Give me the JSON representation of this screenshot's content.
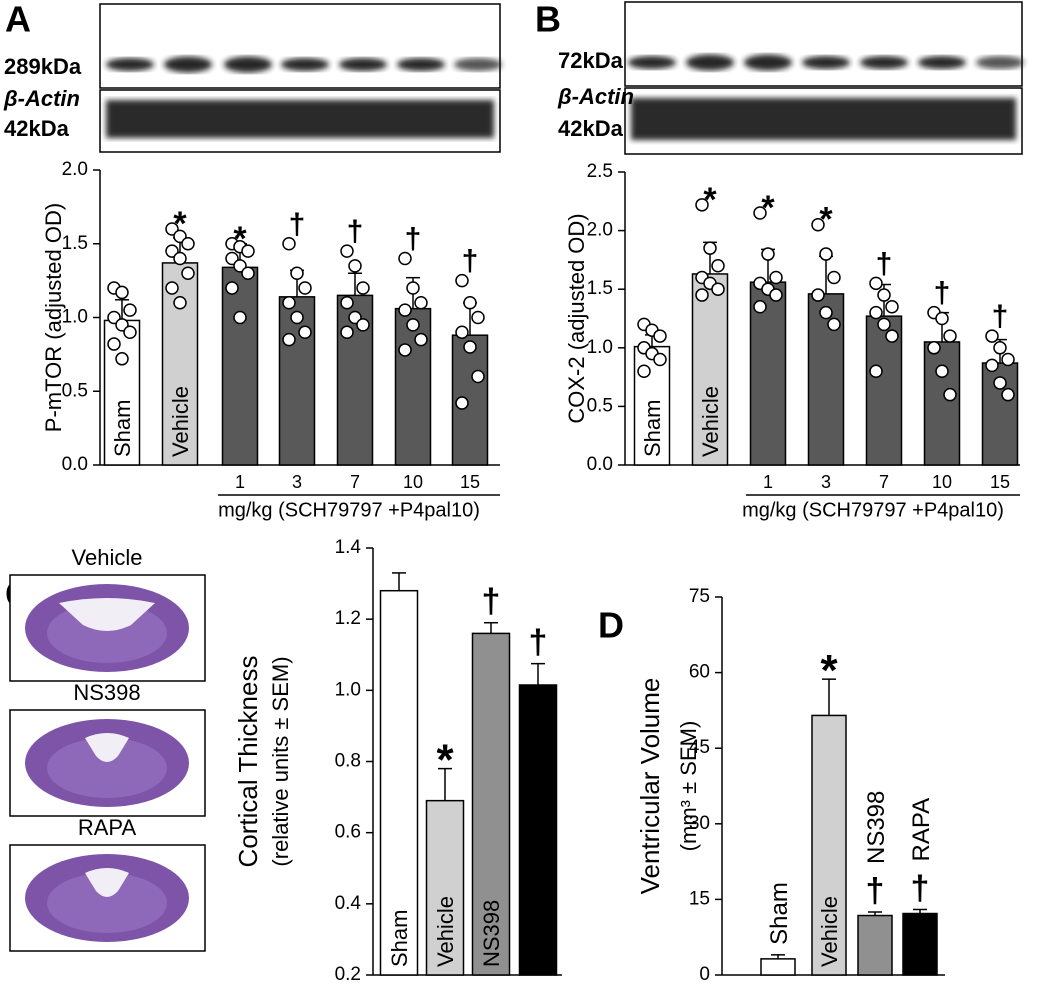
{
  "chart_data": [
    {
      "type": "bar",
      "panel": "A",
      "blot": [
        "289kDa",
        "β-Actin",
        "42kDa"
      ],
      "ylabel": "P-mTOR (adjusted OD)",
      "xlabel": "mg/kg (SCH79797 +P4pal10)",
      "categories": [
        "Sham",
        "Vehicle",
        "1",
        "3",
        "7",
        "10",
        "15"
      ],
      "values": [
        0.98,
        1.37,
        1.34,
        1.14,
        1.15,
        1.06,
        0.88
      ],
      "errors": [
        0.14,
        0.17,
        0.16,
        0.18,
        0.15,
        0.21,
        0.22
      ],
      "points": [
        [
          1.2,
          1.17,
          1.05,
          1.0,
          0.95,
          0.9,
          0.82,
          0.72
        ],
        [
          1.6,
          1.55,
          1.5,
          1.45,
          1.4,
          1.3,
          1.2,
          1.1
        ],
        [
          1.5,
          1.48,
          1.45,
          1.4,
          1.35,
          1.3,
          1.2,
          1.0
        ],
        [
          1.5,
          1.3,
          1.2,
          1.1,
          1.0,
          0.9,
          0.85
        ],
        [
          1.45,
          1.35,
          1.2,
          1.1,
          1.0,
          0.95,
          0.9
        ],
        [
          1.4,
          1.2,
          1.1,
          1.05,
          0.95,
          0.85,
          0.78
        ],
        [
          1.25,
          1.1,
          1.0,
          0.9,
          0.8,
          0.6,
          0.42
        ]
      ],
      "annotations": [
        null,
        "*",
        "*",
        "†",
        "†",
        "†",
        "†"
      ],
      "colors": [
        "#ffffff",
        "#d0d0d0",
        "#595959",
        "#595959",
        "#595959",
        "#595959",
        "#595959"
      ],
      "ylim": [
        0,
        2
      ],
      "yticks": [
        {
          "value": 0,
          "label": "0.0"
        },
        0.5,
        {
          "value": 1,
          "label": "1.0"
        },
        1.5,
        {
          "value": 2,
          "label": "2.0"
        }
      ]
    },
    {
      "type": "bar",
      "panel": "B",
      "blot": [
        "72kDa",
        "β-Actin",
        "42kDa"
      ],
      "ylabel": "COX-2 (adjusted OD)",
      "xlabel": "mg/kg (SCH79797 +P4pal10)",
      "categories": [
        "Sham",
        "Vehicle",
        "1",
        "3",
        "7",
        "10",
        "15"
      ],
      "values": [
        1.01,
        1.63,
        1.56,
        1.46,
        1.27,
        1.05,
        0.87
      ],
      "errors": [
        0.1,
        0.27,
        0.28,
        0.32,
        0.27,
        0.25,
        0.2
      ],
      "points": [
        [
          1.2,
          1.15,
          1.1,
          1.0,
          0.95,
          0.9,
          0.8
        ],
        [
          2.22,
          1.85,
          1.7,
          1.6,
          1.55,
          1.5,
          1.45
        ],
        [
          2.15,
          1.8,
          1.6,
          1.55,
          1.5,
          1.45,
          1.35
        ],
        [
          2.05,
          1.8,
          1.6,
          1.45,
          1.3,
          1.2
        ],
        [
          1.55,
          1.45,
          1.35,
          1.3,
          1.2,
          1.1,
          0.8
        ],
        [
          1.3,
          1.25,
          1.1,
          1.0,
          0.8,
          0.6
        ],
        [
          1.1,
          1.0,
          0.9,
          0.85,
          0.7,
          0.6
        ]
      ],
      "annotations": [
        null,
        "*",
        "*",
        "*",
        "†",
        "†",
        "†"
      ],
      "colors": [
        "#ffffff",
        "#d0d0d0",
        "#595959",
        "#595959",
        "#595959",
        "#595959",
        "#595959"
      ],
      "ylim": [
        0,
        2.5
      ],
      "yticks": [
        {
          "value": 0,
          "label": "0.0"
        },
        0.5,
        {
          "value": 1,
          "label": "1.0"
        },
        1.5,
        {
          "value": 2,
          "label": "2.0"
        },
        2.5
      ]
    },
    {
      "type": "bar",
      "panel": "C",
      "images": [
        "Vehicle",
        "NS398",
        "RAPA"
      ],
      "ylabel": "Cortical Thickness",
      "ylabel_sub": "(relative units ± SEM)",
      "categories": [
        "Sham",
        "Vehicle",
        "NS398",
        "RAPA"
      ],
      "values": [
        1.28,
        0.69,
        1.16,
        1.015
      ],
      "errors": [
        0.05,
        0.09,
        0.03,
        0.06
      ],
      "annotations": [
        null,
        "*",
        "†",
        "†"
      ],
      "colors": [
        "#ffffff",
        "#d0d0d0",
        "#909090",
        "#000000"
      ],
      "ylim": [
        0.2,
        1.4
      ],
      "yticks": [
        0.2,
        0.4,
        0.6,
        0.8,
        {
          "value": 1,
          "label": "1.0"
        },
        1.2,
        1.4
      ]
    },
    {
      "type": "bar",
      "panel": "D",
      "ylabel": "Ventricular Volume",
      "ylabel_sub": "(mm³ ± SEM)",
      "categories": [
        "Sham",
        "Vehicle",
        "NS398",
        "RAPA"
      ],
      "values": [
        3.2,
        51.5,
        11.8,
        12.2
      ],
      "errors": [
        0.8,
        7.2,
        0.7,
        0.8
      ],
      "annotations": [
        null,
        "*",
        "†",
        "†"
      ],
      "colors": [
        "#ffffff",
        "#d0d0d0",
        "#909090",
        "#000000"
      ],
      "ylim": [
        0,
        75
      ],
      "yticks": [
        0,
        15,
        30,
        45,
        60,
        75
      ]
    }
  ]
}
